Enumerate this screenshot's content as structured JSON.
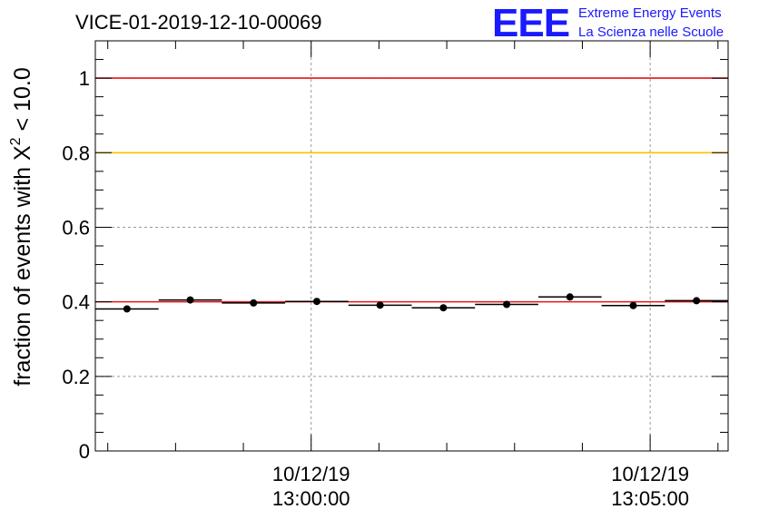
{
  "title": "VICE-01-2019-12-10-00069",
  "logo": {
    "mark": "EEE",
    "line1": "Extreme Energy Events",
    "line2": "La Scienza nelle Scuole",
    "color": "#1a1aff"
  },
  "chart_data": {
    "type": "scatter",
    "title": "VICE-01-2019-12-10-00069",
    "ylabel_prefix": "fraction of events with X",
    "ylabel_sup": "2",
    "ylabel_suffix": " < 10.0",
    "ylim": [
      0,
      1.1
    ],
    "xlim": [
      "12:56:49",
      "13:06:09"
    ],
    "grid": true,
    "y_ticks": [
      {
        "value": 0,
        "label": "0"
      },
      {
        "value": 0.2,
        "label": "0.2"
      },
      {
        "value": 0.4,
        "label": "0.4"
      },
      {
        "value": 0.6,
        "label": "0.6"
      },
      {
        "value": 0.8,
        "label": "0.8"
      },
      {
        "value": 1,
        "label": "1"
      }
    ],
    "x_ticks": [
      {
        "time": "13:00:00",
        "date_label": "10/12/19",
        "time_label": "13:00:00"
      },
      {
        "time": "13:05:00",
        "date_label": "10/12/19",
        "time_label": "13:05:00"
      }
    ],
    "reference_lines": [
      {
        "y": 1.0,
        "color": "#e8141a"
      },
      {
        "y": 0.8,
        "color": "#ffc000"
      },
      {
        "y": 0.4,
        "color": "#e8141a"
      }
    ],
    "points": [
      {
        "x_start": "12:56:49",
        "x_end": "12:57:45",
        "x": "12:57:17",
        "y": 0.381
      },
      {
        "x_start": "12:57:45",
        "x_end": "12:58:41",
        "x": "12:58:13",
        "y": 0.405
      },
      {
        "x_start": "12:58:41",
        "x_end": "12:59:37",
        "x": "12:59:09",
        "y": 0.397
      },
      {
        "x_start": "12:59:37",
        "x_end": "13:00:33",
        "x": "13:00:05",
        "y": 0.401
      },
      {
        "x_start": "13:00:33",
        "x_end": "13:01:29",
        "x": "13:01:01",
        "y": 0.391
      },
      {
        "x_start": "13:01:29",
        "x_end": "13:02:25",
        "x": "13:01:57",
        "y": 0.384
      },
      {
        "x_start": "13:02:25",
        "x_end": "13:03:21",
        "x": "13:02:53",
        "y": 0.393
      },
      {
        "x_start": "13:03:21",
        "x_end": "13:04:17",
        "x": "13:03:49",
        "y": 0.413
      },
      {
        "x_start": "13:04:17",
        "x_end": "13:05:13",
        "x": "13:04:45",
        "y": 0.39
      },
      {
        "x_start": "13:05:13",
        "x_end": "13:06:09",
        "x": "13:05:41",
        "y": 0.403
      }
    ]
  }
}
